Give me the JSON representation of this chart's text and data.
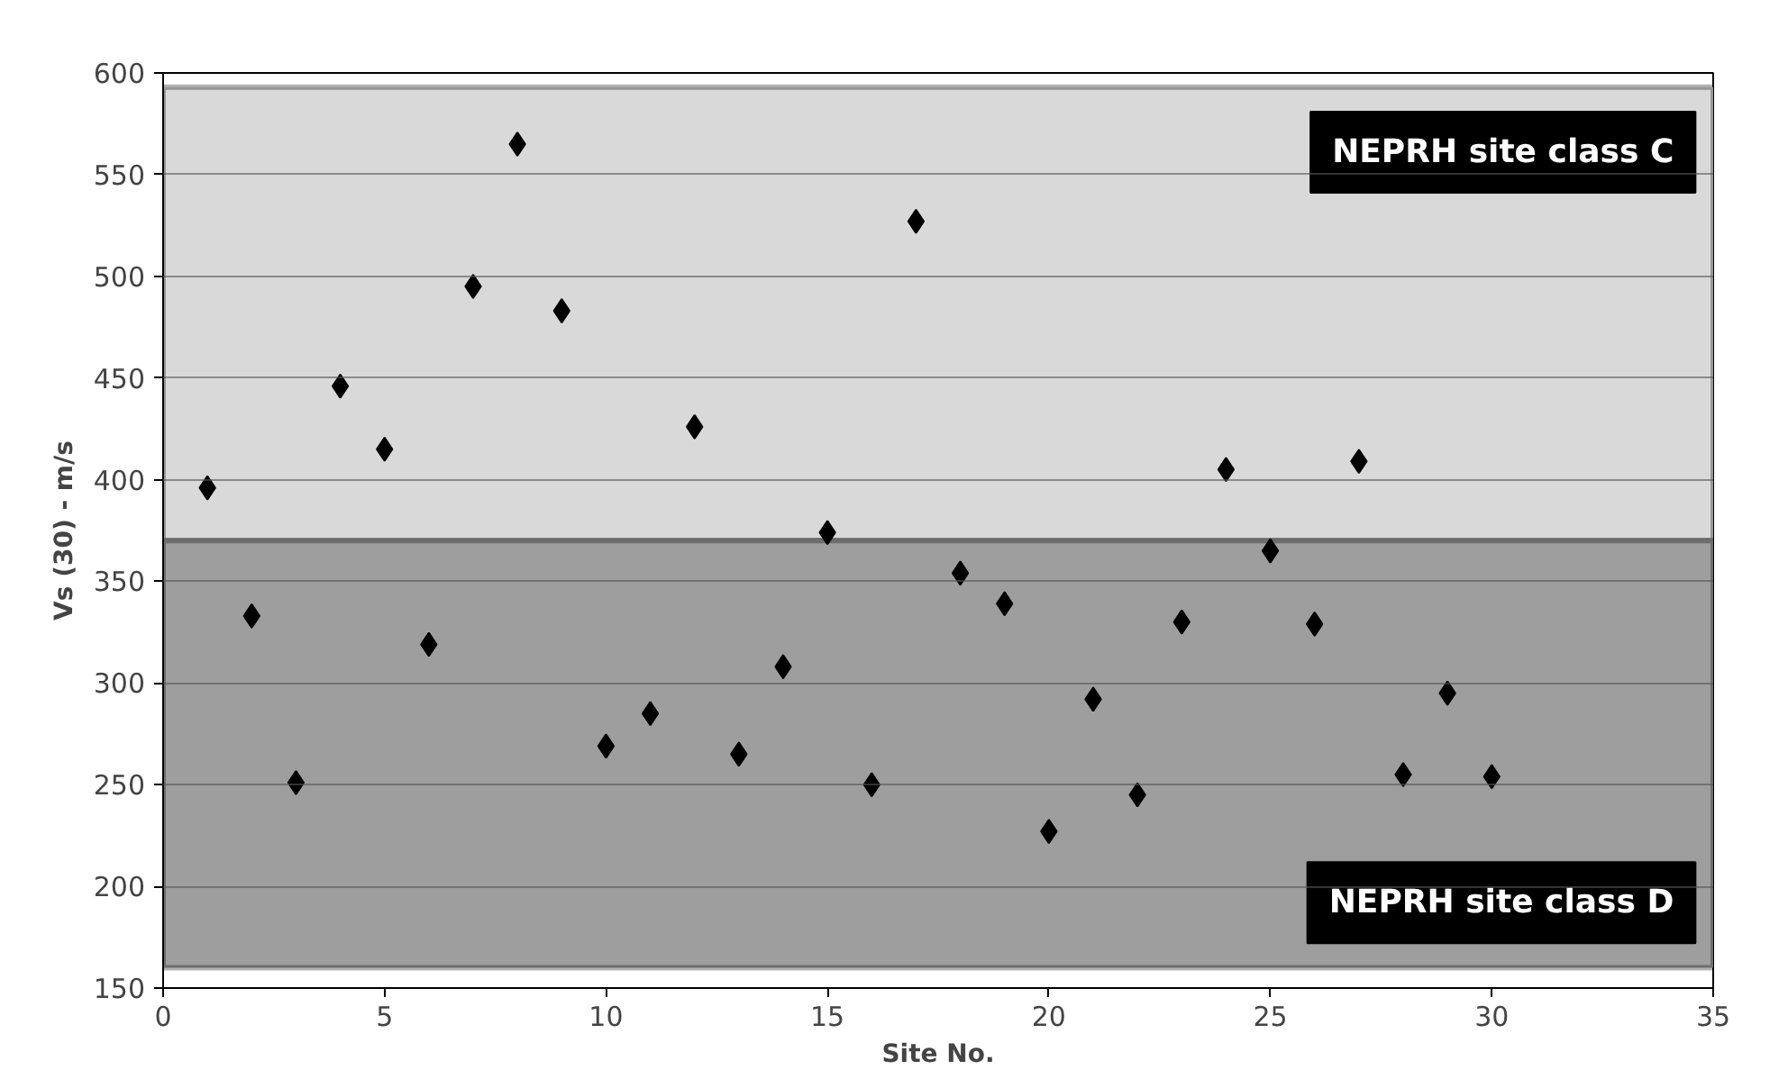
{
  "chart_data": {
    "type": "scatter",
    "xlabel": "Site No.",
    "ylabel": "Vs (30) - m/s",
    "x": [
      1,
      2,
      3,
      4,
      5,
      6,
      7,
      8,
      9,
      10,
      11,
      12,
      13,
      14,
      15,
      16,
      17,
      18,
      19,
      20,
      21,
      22,
      23,
      24,
      25,
      26,
      27,
      28,
      29,
      30
    ],
    "series": [
      {
        "color": "#000000",
        "values": [
          396,
          333,
          251,
          446,
          415,
          319,
          495,
          565,
          483,
          269,
          285,
          426,
          265,
          308,
          374,
          250,
          527,
          354,
          339,
          227,
          292,
          245,
          330,
          405,
          365,
          329,
          409,
          255,
          295,
          254
        ]
      }
    ],
    "marker": "diamond",
    "xlim": [
      0,
      35
    ],
    "xticks": [
      0,
      5,
      10,
      15,
      20,
      25,
      30,
      35
    ],
    "ylim": [
      150,
      600
    ],
    "yticks": [
      150,
      200,
      250,
      300,
      350,
      400,
      450,
      500,
      550,
      600
    ],
    "grid": "y",
    "bands": [
      {
        "axis": "y",
        "from": 370,
        "to": 593,
        "label": "NEPRH site class C",
        "color": "#d9d9d9"
      },
      {
        "axis": "y",
        "from": 160,
        "to": 370,
        "label": "NEPRH site class D",
        "color": "#9e9e9e"
      }
    ]
  }
}
